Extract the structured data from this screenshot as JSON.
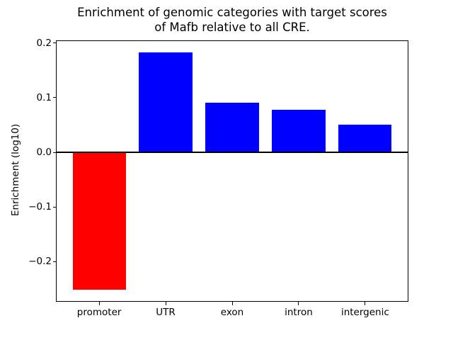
{
  "chart_data": {
    "type": "bar",
    "title": "Enrichment of genomic categories with target scores\nof Mafb relative to all CRE.",
    "xlabel": "",
    "ylabel": "Enrichment (log10)",
    "categories": [
      "promoter",
      "UTR",
      "exon",
      "intron",
      "intergenic"
    ],
    "values": [
      -0.251,
      0.183,
      0.091,
      0.078,
      0.05
    ],
    "bar_colors": [
      "#ff0000",
      "#0000ff",
      "#0000ff",
      "#0000ff",
      "#0000ff"
    ],
    "yticks": [
      0.2,
      0.1,
      0.0,
      -0.1,
      -0.2
    ],
    "ytick_labels": [
      "0.2",
      "0.1",
      "0.0",
      "−0.1",
      "−0.2"
    ],
    "ylim": [
      -0.272,
      0.204
    ],
    "grid": false,
    "legend": null,
    "zero_line": true,
    "background": "#ffffff",
    "axis_color": "#000000"
  }
}
